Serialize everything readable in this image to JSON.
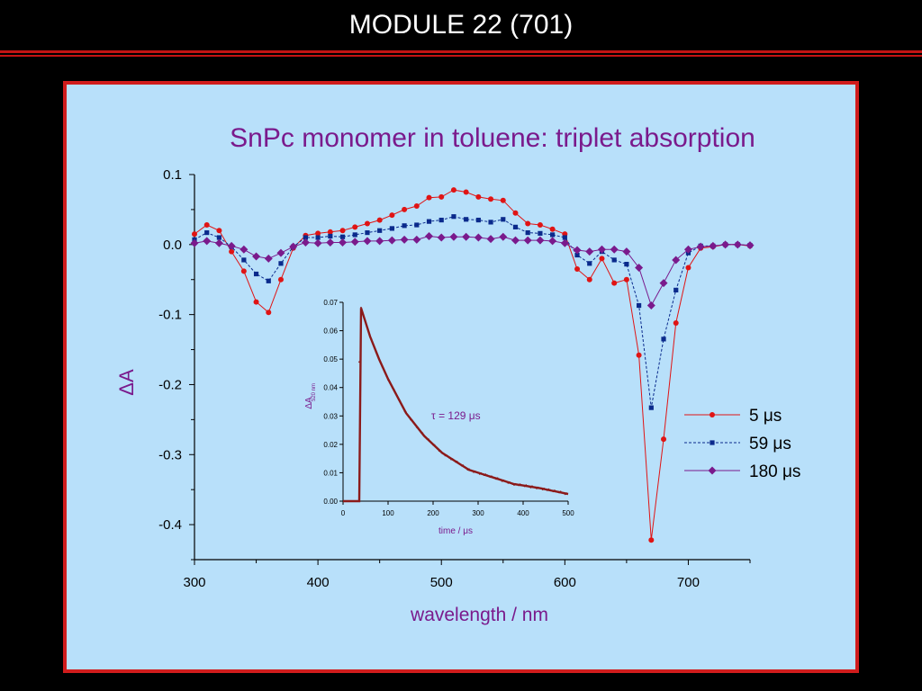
{
  "header": {
    "title": "MODULE 22 (701)"
  },
  "colors": {
    "background": "#000000",
    "header_rule": "#c41414",
    "panel_bg": "#b8e0fa",
    "panel_border": "#d01c1c",
    "title": "#7a1a8c",
    "series_5us": "#e01414",
    "series_59us": "#0a2a8c",
    "series_180us": "#7a1a8c",
    "inset_trace": "#8b1a1a"
  },
  "chart_data": [
    {
      "type": "line",
      "title": "SnPc monomer in toluene: triplet absorption",
      "xlabel": "wavelength / nm",
      "ylabel": "ΔA",
      "xlim": [
        300,
        750
      ],
      "ylim": [
        -0.45,
        0.1
      ],
      "x_ticks": [
        300,
        400,
        500,
        600,
        700
      ],
      "y_ticks": [
        0.1,
        0.0,
        -0.1,
        -0.2,
        -0.3,
        -0.4
      ],
      "x_tick_labels": [
        "300",
        "400",
        "500",
        "600",
        "700"
      ],
      "y_tick_labels": [
        "0.1",
        "0.0",
        "-0.1",
        "-0.2",
        "-0.3",
        "-0.4"
      ],
      "legend": [
        "5 μs",
        "59 μs",
        "180 μs"
      ],
      "legend_position": "right",
      "grid": false,
      "series": [
        {
          "name": "5 μs",
          "style": "solid, circle markers",
          "x": [
            300,
            310,
            320,
            330,
            340,
            350,
            360,
            370,
            380,
            390,
            400,
            410,
            420,
            430,
            440,
            450,
            460,
            470,
            480,
            490,
            500,
            510,
            520,
            530,
            540,
            550,
            560,
            570,
            580,
            590,
            600,
            610,
            620,
            630,
            640,
            650,
            660,
            670,
            680,
            690,
            700,
            710,
            720,
            730,
            740,
            750
          ],
          "values": [
            0.015,
            0.028,
            0.02,
            -0.01,
            -0.038,
            -0.082,
            -0.097,
            -0.05,
            -0.005,
            0.013,
            0.016,
            0.018,
            0.02,
            0.025,
            0.03,
            0.035,
            0.042,
            0.05,
            0.055,
            0.067,
            0.068,
            0.078,
            0.075,
            0.068,
            0.065,
            0.063,
            0.045,
            0.03,
            0.028,
            0.022,
            0.015,
            -0.035,
            -0.05,
            -0.02,
            -0.055,
            -0.05,
            -0.158,
            -0.422,
            -0.278,
            -0.112,
            -0.033,
            -0.005,
            -0.003,
            0.0,
            0.0,
            -0.002
          ]
        },
        {
          "name": "59 μs",
          "style": "dashed, square markers",
          "x": [
            300,
            310,
            320,
            330,
            340,
            350,
            360,
            370,
            380,
            390,
            400,
            410,
            420,
            430,
            440,
            450,
            460,
            470,
            480,
            490,
            500,
            510,
            520,
            530,
            540,
            550,
            560,
            570,
            580,
            590,
            600,
            610,
            620,
            630,
            640,
            650,
            660,
            670,
            680,
            690,
            700,
            710,
            720,
            730,
            740,
            750
          ],
          "values": [
            0.007,
            0.017,
            0.01,
            -0.003,
            -0.022,
            -0.042,
            -0.052,
            -0.027,
            -0.003,
            0.01,
            0.01,
            0.012,
            0.011,
            0.014,
            0.017,
            0.02,
            0.023,
            0.027,
            0.028,
            0.033,
            0.035,
            0.04,
            0.036,
            0.035,
            0.032,
            0.036,
            0.025,
            0.017,
            0.016,
            0.014,
            0.01,
            -0.015,
            -0.027,
            -0.01,
            -0.022,
            -0.028,
            -0.087,
            -0.233,
            -0.135,
            -0.065,
            -0.012,
            -0.002,
            -0.002,
            0.0,
            0.0,
            -0.001
          ]
        },
        {
          "name": "180 μs",
          "style": "solid, diamond markers",
          "x": [
            300,
            310,
            320,
            330,
            340,
            350,
            360,
            370,
            380,
            390,
            400,
            410,
            420,
            430,
            440,
            450,
            460,
            470,
            480,
            490,
            500,
            510,
            520,
            530,
            540,
            550,
            560,
            570,
            580,
            590,
            600,
            610,
            620,
            630,
            640,
            650,
            660,
            670,
            680,
            690,
            700,
            710,
            720,
            730,
            740,
            750
          ],
          "values": [
            0.002,
            0.005,
            0.002,
            -0.002,
            -0.007,
            -0.017,
            -0.02,
            -0.012,
            -0.003,
            0.003,
            0.002,
            0.003,
            0.003,
            0.004,
            0.005,
            0.005,
            0.006,
            0.007,
            0.007,
            0.012,
            0.01,
            0.011,
            0.011,
            0.01,
            0.008,
            0.011,
            0.006,
            0.006,
            0.006,
            0.005,
            0.002,
            -0.008,
            -0.01,
            -0.007,
            -0.007,
            -0.01,
            -0.033,
            -0.087,
            -0.055,
            -0.022,
            -0.007,
            -0.003,
            -0.002,
            0.0,
            0.0,
            -0.001
          ]
        }
      ]
    },
    {
      "type": "line",
      "xlabel": "time / μs",
      "ylabel": "ΔA",
      "ylabel_subscript": "520 nm",
      "annotation": "τ = 129 μs",
      "xlim": [
        0,
        500
      ],
      "ylim": [
        0,
        0.07
      ],
      "x_ticks": [
        0,
        100,
        200,
        300,
        400,
        500
      ],
      "y_ticks": [
        0.0,
        0.01,
        0.02,
        0.03,
        0.04,
        0.05,
        0.06,
        0.07
      ],
      "x_tick_labels": [
        "0",
        "100",
        "200",
        "300",
        "400",
        "500"
      ],
      "y_tick_labels": [
        "0.00",
        "0.01",
        "0.02",
        "0.03",
        "0.04",
        "0.05",
        "0.06",
        "0.07"
      ],
      "series": [
        {
          "name": "decay",
          "x": [
            0,
            36,
            40,
            60,
            80,
            100,
            120,
            140,
            160,
            180,
            200,
            220,
            240,
            260,
            280,
            300,
            320,
            340,
            360,
            380,
            400,
            420,
            440,
            460,
            480,
            500
          ],
          "values": [
            0.0,
            0.0,
            0.068,
            0.058,
            0.05,
            0.043,
            0.037,
            0.031,
            0.027,
            0.023,
            0.02,
            0.017,
            0.015,
            0.013,
            0.011,
            0.01,
            0.009,
            0.008,
            0.007,
            0.006,
            0.0055,
            0.005,
            0.0045,
            0.0038,
            0.0032,
            0.0025
          ]
        }
      ]
    }
  ]
}
